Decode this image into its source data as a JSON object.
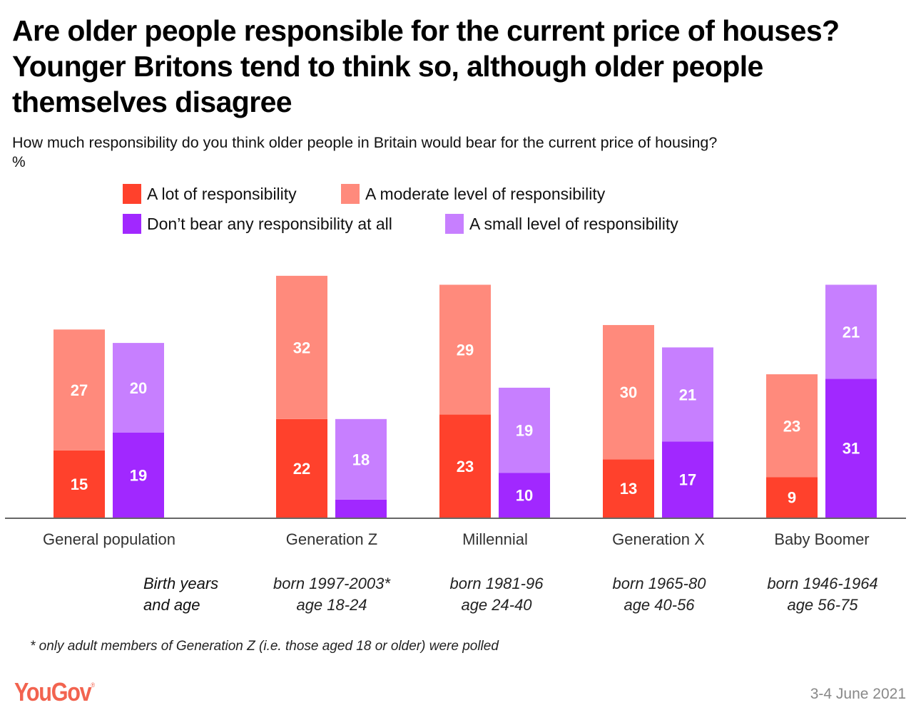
{
  "title": "Are older people responsible for the current price of houses? Younger Britons tend to think so, although older people themselves disagree",
  "subtitle": "How much responsibility do you think older people in Britain would bear for the current price of housing?",
  "unit": "%",
  "legend": [
    {
      "label": "A lot of responsibility",
      "color": "#ff412c"
    },
    {
      "label": "A moderate level of responsibility",
      "color": "#ff8a7c"
    },
    {
      "label": "Don’t bear any responsibility at all",
      "color": "#a128ff"
    },
    {
      "label": "A small level of responsibility",
      "color": "#c77fff"
    }
  ],
  "birth_label": [
    "Birth years",
    "and age"
  ],
  "groups": [
    {
      "name": "General population",
      "born": "",
      "age": ""
    },
    {
      "name": "Generation Z",
      "born": "born 1997-2003*",
      "age": "age 18-24"
    },
    {
      "name": "Millennial",
      "born": "born 1981-96",
      "age": "age 24-40"
    },
    {
      "name": "Generation X",
      "born": "born 1965-80",
      "age": "age 40-56"
    },
    {
      "name": "Baby Boomer",
      "born": "born 1946-1964",
      "age": "age 56-75"
    }
  ],
  "footnote": "* only adult members of Generation Z (i.e. those aged 18 or older) were polled",
  "brand": {
    "name": "YouGov",
    "mark": "®",
    "color": "#f2634f"
  },
  "date": "3-4 June 2021",
  "chart_data": {
    "type": "bar",
    "stacked": true,
    "title": "Are older people responsible for the current price of houses? Younger Britons tend to think so, although older people themselves disagree",
    "subtitle": "How much responsibility do you think older people in Britain would bear for the current price of housing?",
    "xlabel": "",
    "ylabel": "%",
    "ylim": [
      0,
      55
    ],
    "grid": false,
    "legend_position": "top",
    "categories": [
      "General population",
      "Generation Z",
      "Millennial",
      "Generation X",
      "Baby Boomer"
    ],
    "stacks": [
      {
        "name": "Responsible",
        "series": [
          {
            "name": "A lot of responsibility",
            "color": "#ff412c",
            "values": [
              15,
              22,
              23,
              13,
              9
            ],
            "show_labels": [
              true,
              true,
              true,
              true,
              true
            ]
          },
          {
            "name": "A moderate level of responsibility",
            "color": "#ff8a7c",
            "values": [
              27,
              32,
              29,
              30,
              23
            ],
            "show_labels": [
              true,
              true,
              true,
              true,
              true
            ]
          }
        ]
      },
      {
        "name": "Not responsible",
        "series": [
          {
            "name": "Don’t bear any responsibility at all",
            "color": "#a128ff",
            "values": [
              19,
              4,
              10,
              17,
              31
            ],
            "show_labels": [
              true,
              false,
              true,
              true,
              true
            ]
          },
          {
            "name": "A small level of responsibility",
            "color": "#c77fff",
            "values": [
              20,
              18,
              19,
              21,
              21
            ],
            "show_labels": [
              true,
              true,
              true,
              true,
              true
            ]
          }
        ]
      }
    ]
  }
}
